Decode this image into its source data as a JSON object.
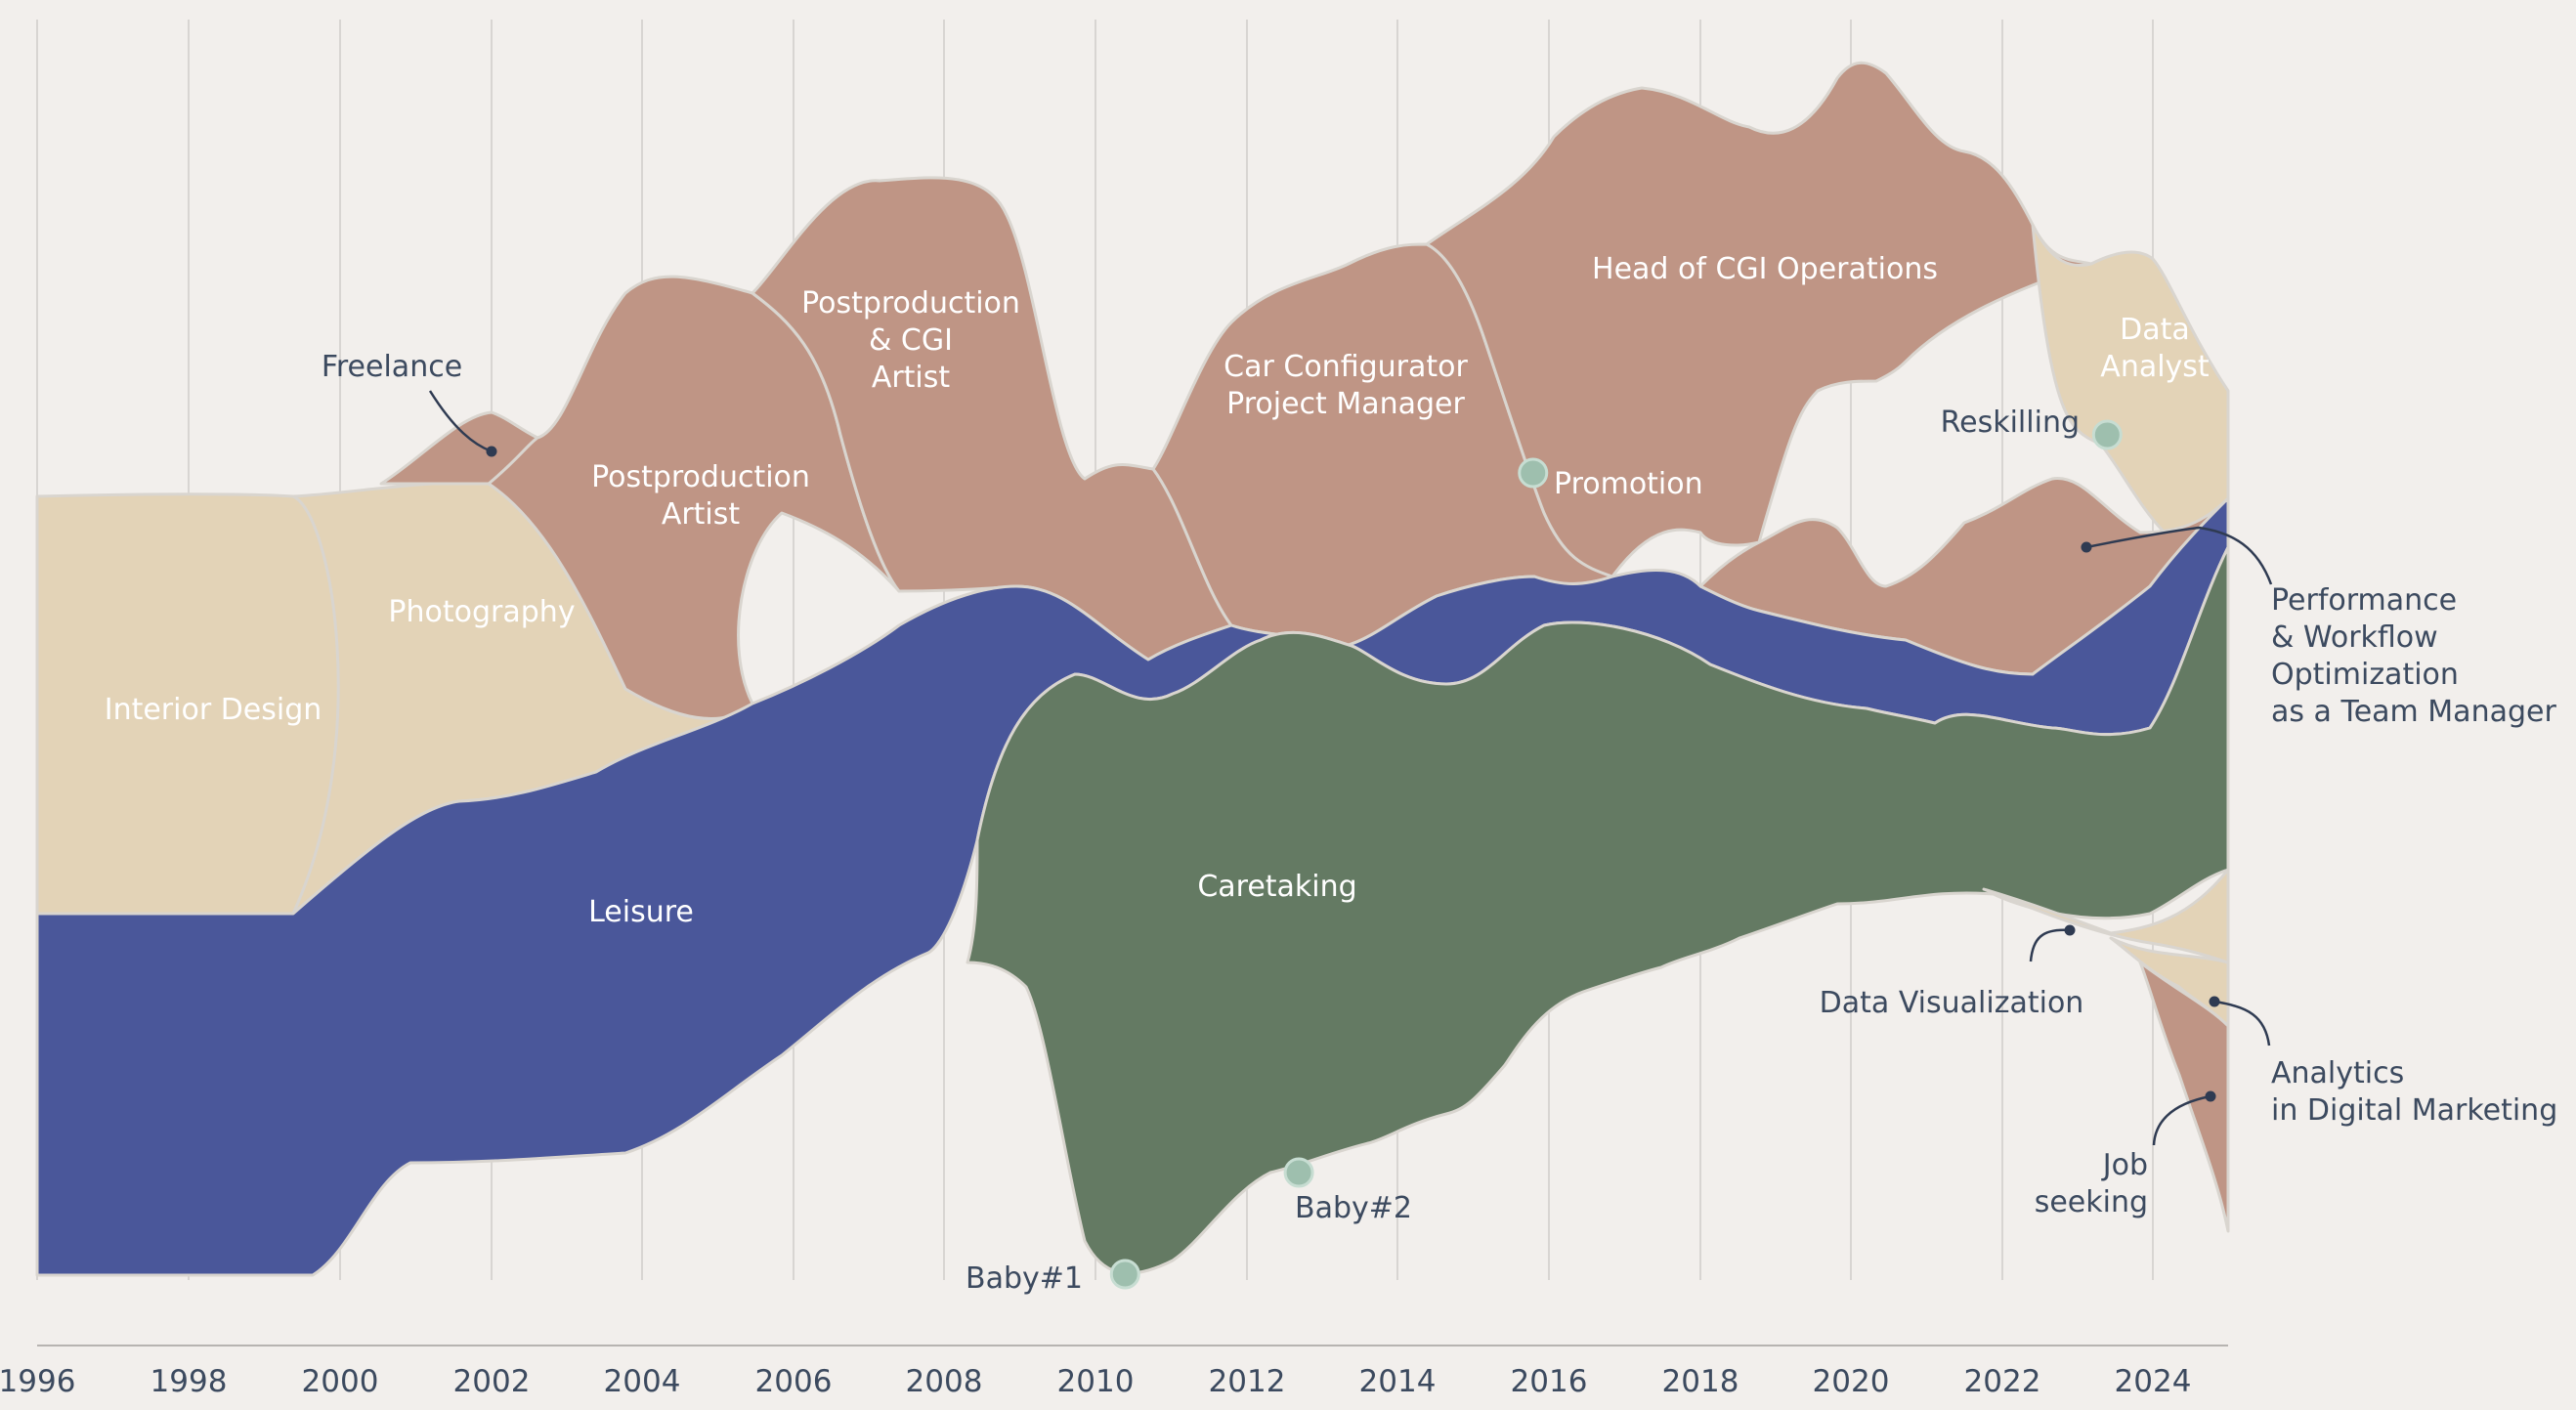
{
  "chart_data": {
    "type": "area",
    "style": "streamgraph",
    "x_axis": {
      "ticks": [
        "1996",
        "1998",
        "2000",
        "2002",
        "2004",
        "2006",
        "2008",
        "2010",
        "2012",
        "2014",
        "2016",
        "2018",
        "2020",
        "2022",
        "2024"
      ],
      "range": [
        1996,
        2025
      ]
    },
    "grid": "vertical",
    "colors": {
      "background": "#f2efec",
      "beige": "#e3d3b7",
      "terracotta": "#bf9585",
      "blue": "#4a579a",
      "green": "#647a63",
      "text": "#3c4a5f",
      "marker": "#9ebfae"
    },
    "series": [
      {
        "name": "Interior Design",
        "color": "#e3d3b7"
      },
      {
        "name": "Photography",
        "color": "#e3d3b7"
      },
      {
        "name": "Freelance",
        "color": "#bf9585"
      },
      {
        "name": "Postproduction Artist",
        "color": "#bf9585"
      },
      {
        "name": "Postproduction & CGI Artist",
        "color": "#bf9585"
      },
      {
        "name": "Car Configurator Project Manager",
        "color": "#bf9585"
      },
      {
        "name": "Head of CGI Operations",
        "color": "#bf9585"
      },
      {
        "name": "Data Analyst",
        "color": "#e3d3b7"
      },
      {
        "name": "Performance & Workflow Optimization as a Team Manager",
        "color": "#bf9585"
      },
      {
        "name": "Leisure",
        "color": "#4a579a"
      },
      {
        "name": "Caretaking",
        "color": "#647a63"
      },
      {
        "name": "Data Visualization",
        "color": "#e3d3b7"
      },
      {
        "name": "Analytics in Digital Marketing",
        "color": "#e3d3b7"
      },
      {
        "name": "Job seeking",
        "color": "#bf9585"
      }
    ],
    "stream_labels": [
      {
        "lines": [
          "Interior Design"
        ]
      },
      {
        "lines": [
          "Photography"
        ]
      },
      {
        "lines": [
          "Postproduction",
          "Artist"
        ]
      },
      {
        "lines": [
          "Postproduction",
          "& CGI",
          "Artist"
        ]
      },
      {
        "lines": [
          "Car Configurator",
          "Project Manager"
        ]
      },
      {
        "lines": [
          "Head of CGI Operations"
        ]
      },
      {
        "lines": [
          "Data",
          "Analyst"
        ]
      },
      {
        "lines": [
          "Leisure"
        ]
      },
      {
        "lines": [
          "Caretaking"
        ]
      }
    ],
    "annotations": [
      {
        "lines": [
          "Freelance"
        ]
      },
      {
        "lines": [
          "Performance",
          "& Workflow",
          "Optimization",
          "as a Team Manager"
        ]
      },
      {
        "lines": [
          "Data Visualization"
        ]
      },
      {
        "lines": [
          "Analytics",
          "in Digital Marketing"
        ]
      },
      {
        "lines": [
          "Job",
          "seeking"
        ]
      }
    ],
    "events": [
      {
        "label": "Baby#1",
        "x": 2010.4
      },
      {
        "label": "Baby#2",
        "x": 2012.7
      },
      {
        "label": "Promotion",
        "x": 2015.8
      },
      {
        "label": "Reskilling",
        "x": 2023.4
      }
    ]
  }
}
